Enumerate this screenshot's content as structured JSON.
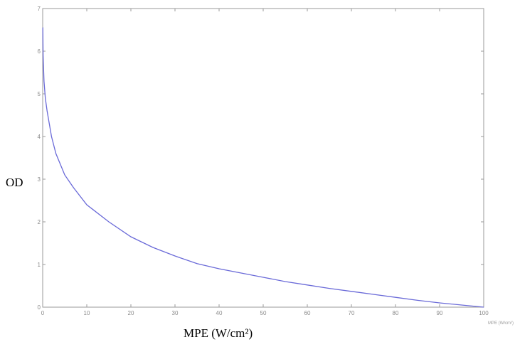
{
  "chart_data": {
    "type": "line",
    "title": "",
    "xlabel": "MPE (W/cm²)",
    "xlabel_inline": "MPE (W/cm²)",
    "ylabel": "OD",
    "xlim": [
      0,
      100
    ],
    "ylim": [
      0,
      7
    ],
    "xticks": [
      "0",
      "10",
      "20",
      "30",
      "40",
      "50",
      "60",
      "70",
      "80",
      "90",
      "100"
    ],
    "yticks": [
      "0",
      "1",
      "2",
      "3",
      "4",
      "5",
      "6",
      "7"
    ],
    "grid": false,
    "legend": "none",
    "series": [
      {
        "color": "#6a6ad8",
        "x": [
          0.03,
          0.1,
          0.3,
          0.6,
          1,
          2,
          3,
          5,
          7,
          10,
          15,
          20,
          25,
          30,
          35,
          40,
          45,
          50,
          55,
          60,
          65,
          70,
          75,
          80,
          85,
          90,
          95,
          100
        ],
        "y": [
          6.55,
          5.9,
          5.3,
          4.9,
          4.6,
          4.0,
          3.6,
          3.1,
          2.8,
          2.4,
          2.0,
          1.65,
          1.4,
          1.2,
          1.02,
          0.9,
          0.8,
          0.7,
          0.6,
          0.52,
          0.44,
          0.37,
          0.3,
          0.23,
          0.16,
          0.1,
          0.05,
          0.0
        ]
      }
    ]
  }
}
